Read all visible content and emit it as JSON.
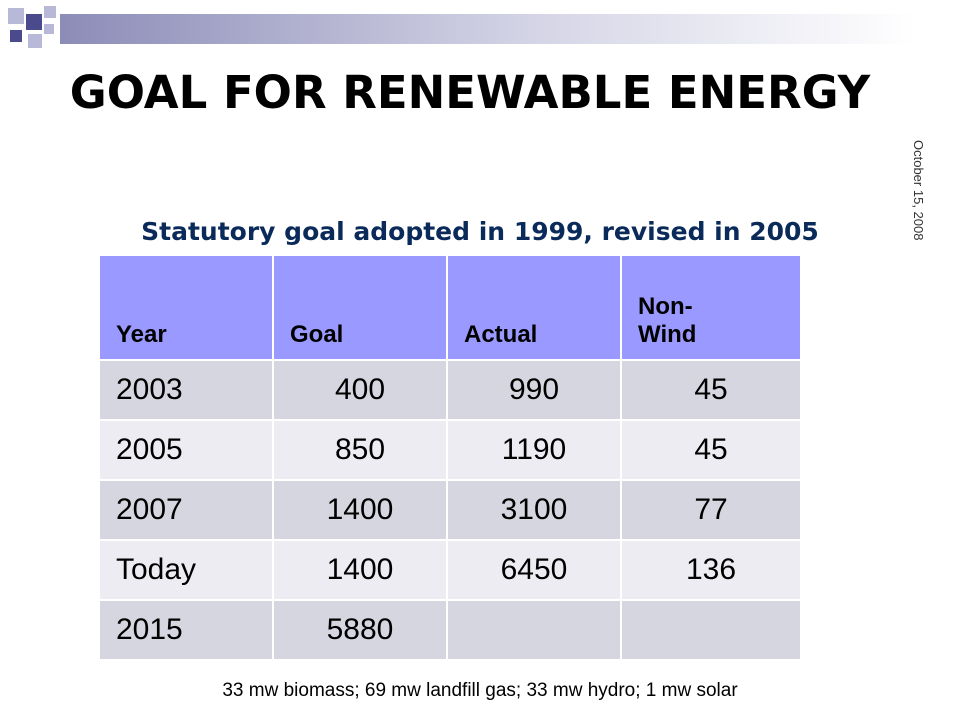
{
  "slide": {
    "title": "GOAL FOR RENEWABLE ENERGY",
    "subtitle": "Statutory goal adopted in 1999, revised in 2005",
    "date": "October 15, 2008",
    "footnote": "33 mw biomass; 69 mw landfill gas; 33 mw hydro; 1 mw solar"
  },
  "table": {
    "headers": [
      "Year",
      "Goal",
      "Actual",
      "Non-\nWind"
    ],
    "rows": [
      [
        "2003",
        "400",
        "990",
        "45"
      ],
      [
        "2005",
        "850",
        "1190",
        "45"
      ],
      [
        "2007",
        "1400",
        "3100",
        "77"
      ],
      [
        "Today",
        "1400",
        "6450",
        "136"
      ],
      [
        "2015",
        "5880",
        "",
        ""
      ]
    ]
  },
  "colors": {
    "header_bg": "#9999ff",
    "row_dark": "#d6d6e0",
    "row_light": "#ececf2",
    "accent": "#4a4a8c"
  }
}
